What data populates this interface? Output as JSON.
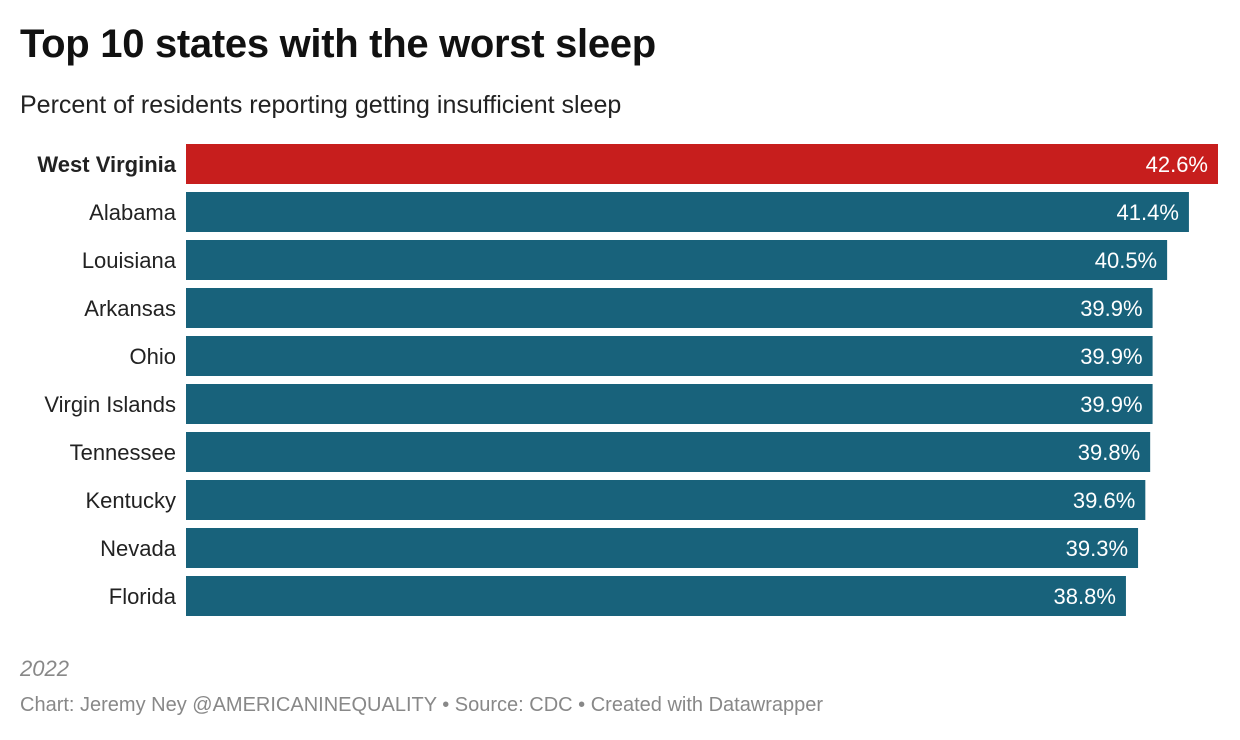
{
  "chart_data": {
    "type": "bar",
    "orientation": "horizontal",
    "title": "Top 10 states with the worst sleep",
    "subtitle": "Percent of residents reporting getting insufficient sleep",
    "categories": [
      "West Virginia",
      "Alabama",
      "Louisiana",
      "Arkansas",
      "Ohio",
      "Virgin Islands",
      "Tennessee",
      "Kentucky",
      "Nevada",
      "Florida"
    ],
    "values": [
      42.6,
      41.4,
      40.5,
      39.9,
      39.9,
      39.9,
      39.8,
      39.6,
      39.3,
      38.8
    ],
    "value_labels": [
      "42.6%",
      "41.4%",
      "40.5%",
      "39.9%",
      "39.9%",
      "39.9%",
      "39.8%",
      "39.6%",
      "39.3%",
      "38.8%"
    ],
    "highlight": "West Virginia",
    "xlim": [
      0,
      42.6
    ],
    "xlabel": "",
    "ylabel": "",
    "grid": false,
    "colors": {
      "highlight": "#c71e1d",
      "default": "#18627b"
    }
  },
  "notes": "2022",
  "footer": "Chart: Jeremy Ney @AMERICANINEQUALITY • Source: CDC • Created with Datawrapper"
}
